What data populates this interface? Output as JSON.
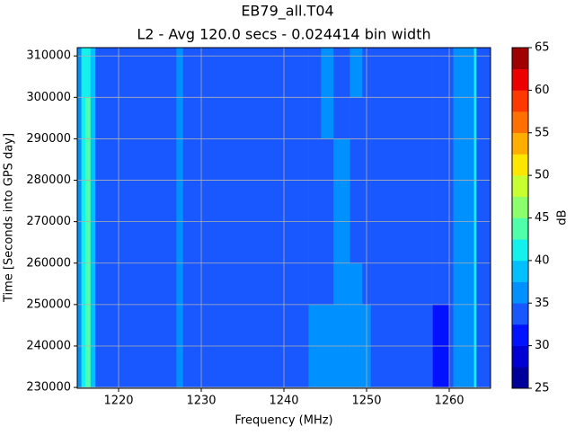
{
  "chart_data": {
    "type": "heatmap",
    "title": "EB79_all.T04",
    "subtitle": "L2 - Avg 120.0 secs - 0.024414 bin width",
    "x_label": "Frequency (MHz)",
    "y_label": "Time [Seconds into GPS day]",
    "colorbar_label": "dB",
    "x_edges": [
      1215,
      1215.5,
      1216,
      1216.6,
      1217.2,
      1227,
      1227.8,
      1243,
      1244.5,
      1246,
      1248,
      1249.5,
      1250.5,
      1258,
      1260,
      1260.5,
      1262.5,
      1263,
      1263.3,
      1265
    ],
    "y_edges": [
      229800,
      240000,
      250000,
      260000,
      270000,
      280000,
      290000,
      300000,
      312000
    ],
    "z": [
      [
        37,
        41,
        44,
        38,
        34,
        36,
        34,
        36,
        36,
        37,
        37,
        36,
        34,
        31,
        34,
        36,
        37,
        40,
        34
      ],
      [
        37,
        41,
        44,
        38,
        34,
        36,
        34,
        36,
        36,
        37,
        37,
        36,
        34,
        32,
        34,
        36,
        37,
        40,
        34
      ],
      [
        37,
        41,
        44,
        38,
        34,
        36,
        34,
        34,
        34,
        36,
        36,
        34,
        34,
        34,
        34,
        36,
        37,
        40,
        34
      ],
      [
        37,
        41,
        44,
        38,
        34,
        36,
        34,
        34,
        34,
        36,
        34,
        34,
        34,
        34,
        34,
        36,
        37,
        40,
        34
      ],
      [
        37,
        41,
        44,
        38,
        34,
        36,
        34,
        34,
        34,
        36,
        34,
        34,
        34,
        34,
        34,
        36,
        37,
        40,
        34
      ],
      [
        37,
        41,
        44,
        38,
        34,
        36,
        34,
        34,
        34,
        36,
        34,
        34,
        34,
        34,
        34,
        36,
        37,
        40,
        34
      ],
      [
        37,
        41,
        43,
        38,
        34,
        36,
        34,
        34,
        36,
        34,
        34,
        34,
        34,
        34,
        34,
        36,
        37,
        40,
        34
      ],
      [
        37,
        41,
        42,
        38,
        34,
        36,
        34,
        34,
        36,
        34,
        36,
        34,
        34,
        34,
        34,
        36,
        37,
        40,
        34
      ]
    ],
    "xlim": [
      1215,
      1265
    ],
    "ylim": [
      229800,
      312000
    ],
    "xticks": [
      1220,
      1230,
      1240,
      1250,
      1260
    ],
    "yticks": [
      230000,
      240000,
      250000,
      260000,
      270000,
      280000,
      290000,
      300000,
      310000
    ],
    "grid": true,
    "levels": [
      25,
      27.5,
      30,
      32.5,
      35,
      37.5,
      40,
      42.5,
      45,
      47.5,
      50,
      52.5,
      55,
      57.5,
      60,
      62.5,
      65
    ],
    "colors": [
      "#00009a",
      "#0000d4",
      "#0012ff",
      "#1a58ff",
      "#0090ff",
      "#00c0ff",
      "#14f0ec",
      "#50ffaa",
      "#8cff6c",
      "#c8ff30",
      "#ffe600",
      "#ffae00",
      "#ff7000",
      "#ff3800",
      "#ec0000",
      "#a00000"
    ],
    "cticks": [
      25,
      30,
      35,
      40,
      45,
      50,
      55,
      60,
      65
    ]
  }
}
